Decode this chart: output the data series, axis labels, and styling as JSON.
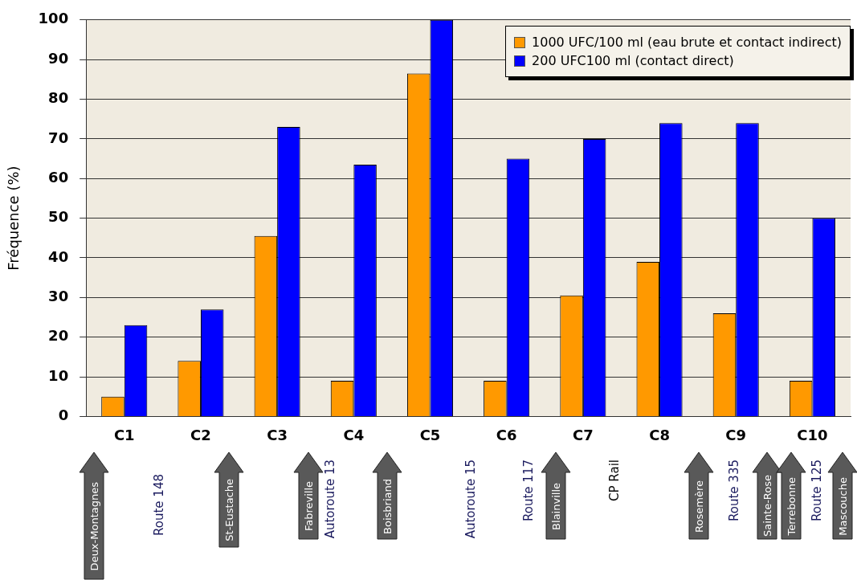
{
  "chart_data": {
    "type": "bar",
    "ylabel": "Fréquence (%)",
    "categories": [
      "C1",
      "C2",
      "C3",
      "C4",
      "C5",
      "C6",
      "C7",
      "C8",
      "C9",
      "C10"
    ],
    "series": [
      {
        "name": "1000 UFC/100 ml (eau brute et contact indirect)",
        "color": "#ff9900",
        "values": [
          5,
          14,
          45.5,
          9,
          86.5,
          9,
          30.5,
          39,
          26,
          9
        ]
      },
      {
        "name": "200 UFC100 ml (contact direct)",
        "color": "#0000ff",
        "values": [
          23,
          27,
          73,
          63.5,
          100,
          65,
          70,
          74,
          74,
          50
        ]
      }
    ],
    "ylim": [
      0,
      100
    ],
    "yticks": [
      0,
      10,
      20,
      30,
      40,
      50,
      60,
      70,
      80,
      90,
      100
    ],
    "grid": "y",
    "legend": "top right",
    "annotations": [
      "Deux-Montagnes",
      "Route 148",
      "St-Eustache",
      "Fabreville",
      "Autoroute 13",
      "Boisbriand",
      "Autoroute 15",
      "Route 117",
      "Blainville",
      "CP Rail",
      "Rosemère",
      "Route 335",
      "Sainte-Rose",
      "Terrebonne",
      "Route 125",
      "Mascouche"
    ]
  }
}
